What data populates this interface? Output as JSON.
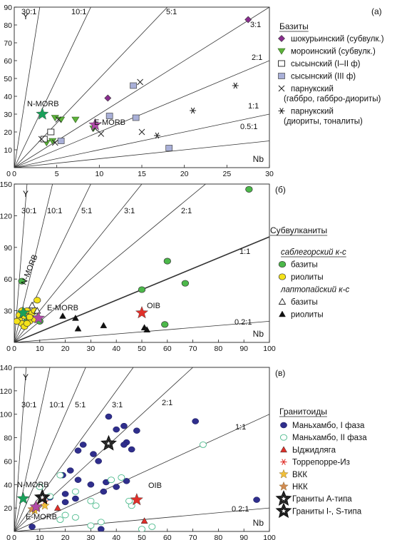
{
  "chart_data": [
    {
      "type": "scatter",
      "panel_label": "(а)",
      "ylabel": "Y",
      "xlabel": "Nb",
      "xlim": [
        0,
        30
      ],
      "ylim": [
        0,
        90
      ],
      "xticks": [
        0,
        5,
        10,
        15,
        20,
        25,
        30
      ],
      "yticks": [
        10,
        20,
        30,
        40,
        50,
        60,
        70,
        80,
        90
      ],
      "ratio_lines": [
        {
          "label": "30:1",
          "slope": 30
        },
        {
          "label": "10:1",
          "slope": 10
        },
        {
          "label": "5:1",
          "slope": 5
        },
        {
          "label": "3:1",
          "slope": 3
        },
        {
          "label": "2:1",
          "slope": 2
        },
        {
          "label": "1:1",
          "slope": 1
        },
        {
          "label": "0.5:1",
          "slope": 0.5
        }
      ],
      "legend_title": "Базиты",
      "legend_position": "right",
      "series": [
        {
          "name": "шокурьинский (субвулк.)",
          "marker": "diamond",
          "color": "#8a2c8f",
          "points": [
            [
              27.5,
              83
            ],
            [
              11,
              39
            ]
          ]
        },
        {
          "name": "мороинский (субвулк.)",
          "marker": "triangle-down",
          "color": "#5db33a",
          "points": [
            [
              5.5,
              27
            ],
            [
              4.8,
              28
            ],
            [
              7.2,
              27
            ],
            [
              9.3,
              22
            ],
            [
              3.8,
              14
            ],
            [
              4.5,
              15
            ]
          ]
        },
        {
          "name": "сысынский (I–II ф)",
          "marker": "square-open",
          "color": "#222222",
          "points": [
            [
              4.3,
              20
            ],
            [
              3.5,
              16
            ]
          ]
        },
        {
          "name": "сысынский (III ф)",
          "marker": "square",
          "color": "#a9b0d8",
          "points": [
            [
              14,
              46
            ],
            [
              11.2,
              29
            ],
            [
              14.3,
              28
            ],
            [
              5.5,
              15
            ],
            [
              18.2,
              11
            ]
          ]
        },
        {
          "name": "парнукский (габбро, габбро-диориты)",
          "marker": "x",
          "color": "#222222",
          "points": [
            [
              14.8,
              48
            ],
            [
              5.2,
              27
            ],
            [
              10.2,
              19
            ],
            [
              15,
              20
            ],
            [
              3.2,
              16
            ],
            [
              4.8,
              14
            ],
            [
              9.5,
              22
            ]
          ]
        },
        {
          "name": "парнукский (диориты, тоналиты)",
          "marker": "asterisk",
          "color": "#222222",
          "points": [
            [
              26,
              46
            ],
            [
              21,
              32
            ],
            [
              16.8,
              18
            ]
          ]
        }
      ],
      "references": [
        {
          "name": "N-MORB",
          "color": "#1aa05a",
          "point": [
            3.3,
            30
          ]
        },
        {
          "name": "E-MORB",
          "color": "#b04aa8",
          "point": [
            9.5,
            24
          ]
        }
      ]
    },
    {
      "type": "scatter",
      "panel_label": "(б)",
      "ylabel": "Y",
      "xlabel": "Nb",
      "xlim": [
        0,
        100
      ],
      "ylim": [
        0,
        150
      ],
      "xticks": [
        0,
        10,
        20,
        30,
        40,
        50,
        60,
        70,
        80,
        90,
        100
      ],
      "yticks": [
        30,
        60,
        90,
        120,
        150
      ],
      "ratio_lines": [
        {
          "label": "30:1",
          "slope": 30
        },
        {
          "label": "10:1",
          "slope": 10
        },
        {
          "label": "5:1",
          "slope": 5
        },
        {
          "label": "3:1",
          "slope": 3
        },
        {
          "label": "2:1",
          "slope": 2
        },
        {
          "label": "1:1",
          "slope": 1
        },
        {
          "label": "0.2:1",
          "slope": 0.2
        }
      ],
      "legend_title": "Субвулканиты",
      "legend_groups": [
        {
          "title": "саблегорский к-с",
          "series": [
            0,
            1
          ]
        },
        {
          "title": "лаптопайский к-с",
          "series": [
            2,
            3
          ]
        }
      ],
      "series": [
        {
          "name": "базиты",
          "marker": "circle",
          "color": "#4cb84a",
          "points": [
            [
              92,
              145
            ],
            [
              60,
              77
            ],
            [
              67,
              56
            ],
            [
              50,
              50
            ],
            [
              59,
              17
            ],
            [
              3,
              58
            ],
            [
              10,
              20
            ],
            [
              5,
              20
            ]
          ]
        },
        {
          "name": "риолиты",
          "marker": "circle",
          "color": "#f4e21a",
          "points": [
            [
              2,
              22
            ],
            [
              3,
              18
            ],
            [
              4,
              25
            ],
            [
              5,
              30
            ],
            [
              6,
              20
            ],
            [
              7,
              28
            ],
            [
              8,
              22
            ],
            [
              9,
              40
            ],
            [
              2,
              26
            ],
            [
              3,
              30
            ],
            [
              4,
              15
            ],
            [
              6,
              24
            ],
            [
              8,
              30
            ],
            [
              1,
              20
            ],
            [
              5,
              18
            ]
          ]
        },
        {
          "name": "базиты",
          "marker": "triangle-open",
          "color": "#222222",
          "points": [
            [
              7,
              35
            ],
            [
              9,
              30
            ]
          ]
        },
        {
          "name": "риолиты",
          "marker": "triangle",
          "color": "#111111",
          "points": [
            [
              19,
              25
            ],
            [
              24,
              23
            ],
            [
              25,
              13
            ],
            [
              35,
              16
            ],
            [
              51,
              14
            ],
            [
              52,
              12
            ]
          ]
        }
      ],
      "references": [
        {
          "name": "N-MORB",
          "color": "#1aa05a",
          "point": [
            3.5,
            28
          ]
        },
        {
          "name": "E-MORB",
          "color": "#b04aa8",
          "point": [
            9.5,
            23
          ]
        },
        {
          "name": "OIB",
          "color": "#e0302a",
          "point": [
            50,
            28
          ]
        }
      ]
    },
    {
      "type": "scatter",
      "panel_label": "(в)",
      "ylabel": "Y",
      "xlabel": "Nb",
      "xlim": [
        0,
        100
      ],
      "ylim": [
        0,
        140
      ],
      "xticks": [
        0,
        10,
        20,
        30,
        40,
        50,
        60,
        70,
        80,
        90,
        100
      ],
      "yticks": [
        20,
        40,
        60,
        80,
        100,
        120,
        140
      ],
      "ratio_lines": [
        {
          "label": "30:1",
          "slope": 30
        },
        {
          "label": "10:1",
          "slope": 10
        },
        {
          "label": "5:1",
          "slope": 5
        },
        {
          "label": "3:1",
          "slope": 3
        },
        {
          "label": "2:1",
          "slope": 2
        },
        {
          "label": "1:1",
          "slope": 1
        },
        {
          "label": "0.2:1",
          "slope": 0.2
        }
      ],
      "legend_title": "Гранитоиды",
      "series": [
        {
          "name": "Маньхамбо, I фаза",
          "marker": "ellipse",
          "color": "#2f2e8c",
          "points": [
            [
              37,
              98
            ],
            [
              71,
              94
            ],
            [
              43,
              90
            ],
            [
              40,
              87
            ],
            [
              48,
              86
            ],
            [
              44,
              76
            ],
            [
              43,
              74
            ],
            [
              46,
              70
            ],
            [
              27,
              74
            ],
            [
              25,
              69
            ],
            [
              31,
              66
            ],
            [
              33,
              60
            ],
            [
              19,
              48
            ],
            [
              22,
              52
            ],
            [
              25,
              44
            ],
            [
              30,
              40
            ],
            [
              36,
              42
            ],
            [
              44,
              43
            ],
            [
              40,
              38
            ],
            [
              35,
              34
            ],
            [
              20,
              32
            ],
            [
              24,
              28
            ],
            [
              14,
              29
            ],
            [
              20,
              25
            ],
            [
              95,
              27
            ],
            [
              7,
              4
            ],
            [
              34,
              2
            ]
          ]
        },
        {
          "name": "Маньхамбо, II фаза",
          "marker": "ellipse-open",
          "color": "#4cba8c",
          "points": [
            [
              74,
              74
            ],
            [
              38,
              44
            ],
            [
              42,
              46
            ],
            [
              18,
              48
            ],
            [
              24,
              34
            ],
            [
              30,
              26
            ],
            [
              32,
              22
            ],
            [
              20,
              14
            ],
            [
              24,
              12
            ],
            [
              18,
              10
            ],
            [
              46,
              22
            ],
            [
              45,
              26
            ],
            [
              10,
              38
            ],
            [
              14,
              30
            ],
            [
              54,
              4
            ],
            [
              50,
              2
            ],
            [
              30,
              5
            ],
            [
              34,
              8
            ]
          ]
        },
        {
          "name": "Ыджидляга",
          "marker": "triangle",
          "color": "#e0302a",
          "points": [
            [
              51,
              9
            ],
            [
              17,
              20
            ]
          ]
        },
        {
          "name": "Торрепорре-Из",
          "marker": "asterisk",
          "color": "#e0302a",
          "points": [
            [
              9,
              22
            ],
            [
              12,
              26
            ]
          ]
        },
        {
          "name": "ВКК",
          "marker": "star",
          "color": "#f1c03a",
          "points": [
            [
              12,
              22
            ],
            [
              8,
              18
            ]
          ]
        },
        {
          "name": "НКК",
          "marker": "star",
          "color": "#d08a50",
          "points": [
            [
              7,
              19
            ],
            [
              9,
              21
            ]
          ]
        },
        {
          "name": "Граниты А-типа",
          "marker": "star-ring",
          "color": "#111111",
          "points": [
            [
              37,
              75
            ]
          ]
        },
        {
          "name": "Граниты I-, S-типа",
          "marker": "star-ring-s",
          "color": "#111111",
          "points": [
            [
              11,
              29
            ]
          ]
        }
      ],
      "references": [
        {
          "name": "N-MORB",
          "color": "#1aa05a",
          "point": [
            3.5,
            28
          ]
        },
        {
          "name": "E-MORB",
          "color": "#b04aa8",
          "point": [
            8.5,
            21
          ]
        },
        {
          "name": "OIB",
          "color": "#e0302a",
          "point": [
            48,
            27
          ]
        }
      ]
    }
  ]
}
